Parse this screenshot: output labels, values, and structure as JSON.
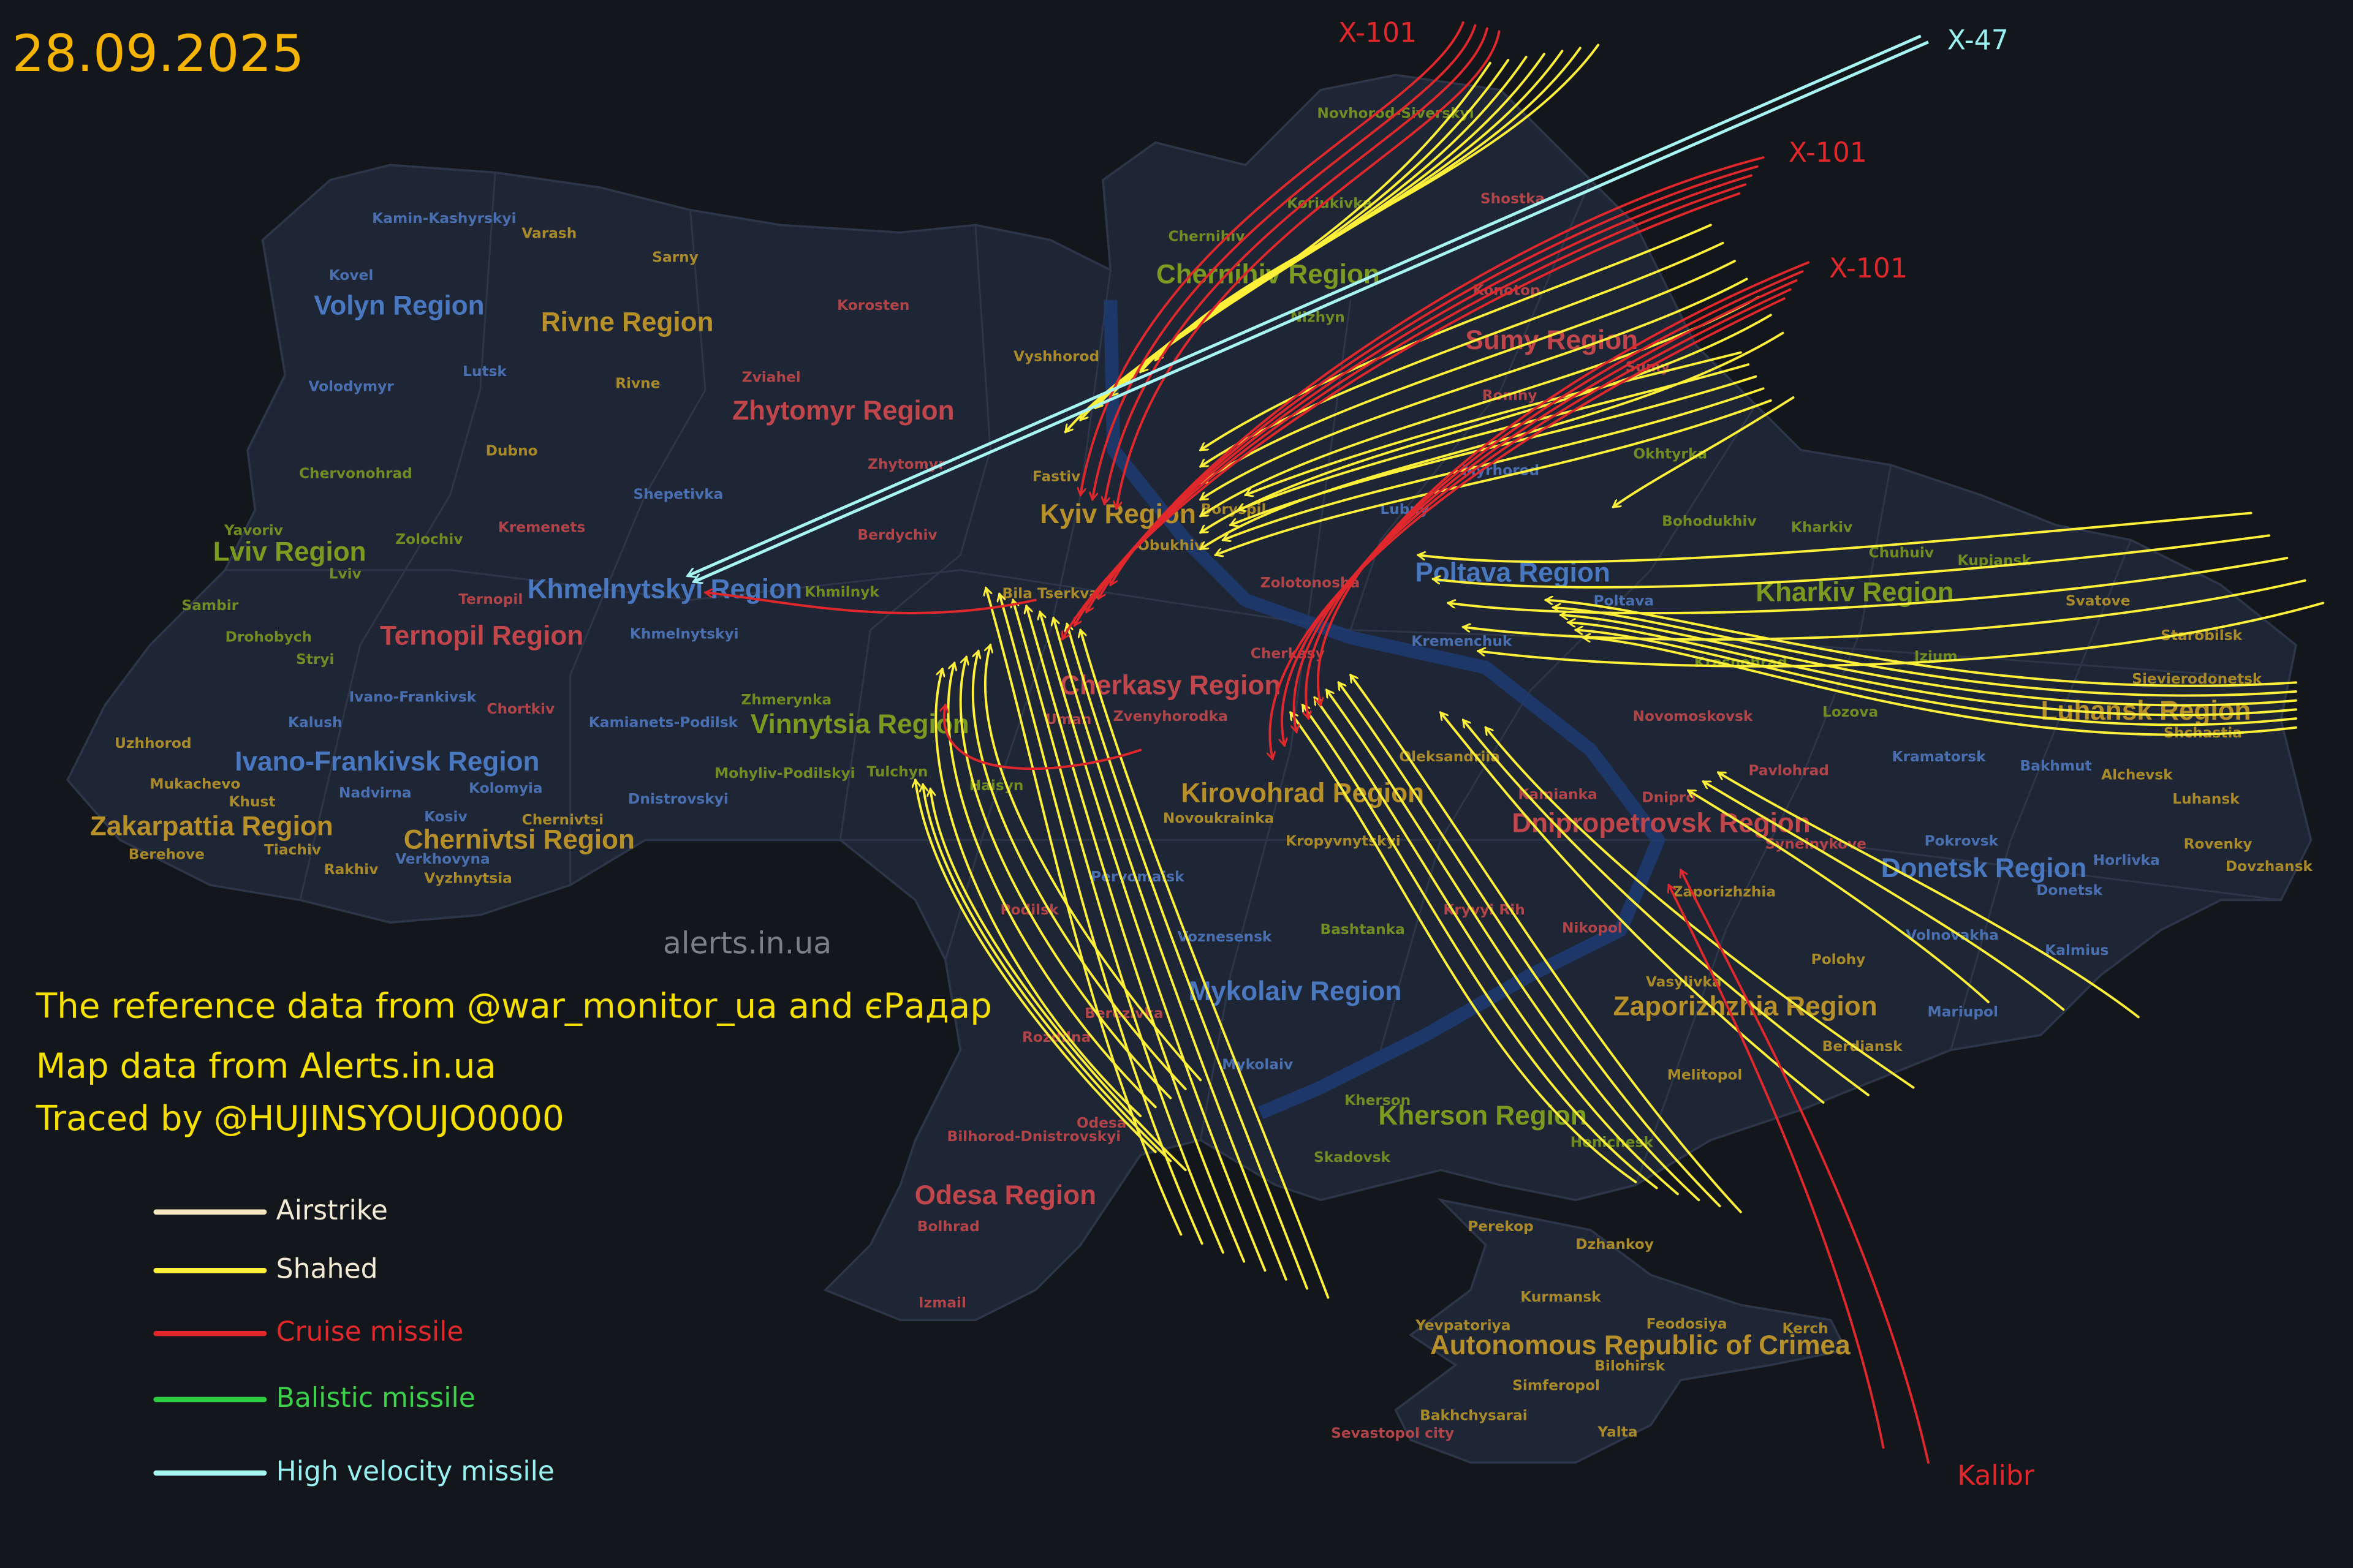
{
  "date": "28.09.2025",
  "watermark": "alerts.in.ua",
  "credits": [
    "The reference data from @war_monitor_ua and єРадар",
    "Map data from Alerts.in.ua",
    "Traced by @HUJINSYOUJO0000"
  ],
  "legend": [
    {
      "label": "Airstrike",
      "color": "#f4e6c2",
      "text_color": "#f3ead6"
    },
    {
      "label": "Shahed",
      "color": "#fff03a",
      "text_color": "#f3ead6"
    },
    {
      "label": "Cruise missile",
      "color": "#e0282c",
      "text_color": "#e0282c"
    },
    {
      "label": "Balistic missile",
      "color": "#2ecc40",
      "text_color": "#3ad24a"
    },
    {
      "label": "High velocity missile",
      "color": "#a8f6f4",
      "text_color": "#98f0f0"
    }
  ],
  "missile_labels": [
    {
      "label": "X-101",
      "color": "#e0282c"
    },
    {
      "label": "X-47",
      "color": "#98f0f0"
    },
    {
      "label": "X-101",
      "color": "#e0282c"
    },
    {
      "label": "X-101",
      "color": "#e0282c"
    },
    {
      "label": "Kalibr",
      "color": "#e0282c"
    }
  ],
  "regions": [
    {
      "name": "Volyn Region",
      "color": "#4a78c0"
    },
    {
      "name": "Rivne Region",
      "color": "#b8902a"
    },
    {
      "name": "Zhytomyr Region",
      "color": "#c0464c"
    },
    {
      "name": "Chernihiv Region",
      "color": "#7a9a20"
    },
    {
      "name": "Sumy Region",
      "color": "#c0464c"
    },
    {
      "name": "Kyiv Region",
      "color": "#b8902a"
    },
    {
      "name": "Lviv Region",
      "color": "#7a9a20"
    },
    {
      "name": "Ternopil Region",
      "color": "#c0464c"
    },
    {
      "name": "Khmelnytskyi Region",
      "color": "#4a78c0"
    },
    {
      "name": "Poltava Region",
      "color": "#4a78c0"
    },
    {
      "name": "Kharkiv Region",
      "color": "#7a9a20"
    },
    {
      "name": "Luhansk Region",
      "color": "#b8902a"
    },
    {
      "name": "Cherkasy Region",
      "color": "#c0464c"
    },
    {
      "name": "Vinnytsia Region",
      "color": "#7a9a20"
    },
    {
      "name": "Ivano-Frankivsk Region",
      "color": "#4a78c0"
    },
    {
      "name": "Zakarpattia Region",
      "color": "#b8902a"
    },
    {
      "name": "Chernivtsi Region",
      "color": "#b8902a"
    },
    {
      "name": "Kirovohrad Region",
      "color": "#b8902a"
    },
    {
      "name": "Dnipropetrovsk Region",
      "color": "#c0464c"
    },
    {
      "name": "Donetsk Region",
      "color": "#4a78c0"
    },
    {
      "name": "Mykolaiv Region",
      "color": "#4a78c0"
    },
    {
      "name": "Zaporizhzhia Region",
      "color": "#b8902a"
    },
    {
      "name": "Kherson Region",
      "color": "#7a9a20"
    },
    {
      "name": "Odesa Region",
      "color": "#c0464c"
    },
    {
      "name": "Autonomous Republic of Crimea",
      "color": "#b8902a"
    }
  ],
  "cities": [
    {
      "name": "Kamin-Kashyrskyi",
      "color": "#4a6fb0"
    },
    {
      "name": "Varash",
      "color": "#a98a2a"
    },
    {
      "name": "Sarny",
      "color": "#a98a2a"
    },
    {
      "name": "Kovel",
      "color": "#4a6fb0"
    },
    {
      "name": "Korosten",
      "color": "#b04448"
    },
    {
      "name": "Lutsk",
      "color": "#4a6fb0"
    },
    {
      "name": "Rivne",
      "color": "#a98a2a"
    },
    {
      "name": "Zviahel",
      "color": "#b04448"
    },
    {
      "name": "Volodymyr",
      "color": "#4a6fb0"
    },
    {
      "name": "Vyshhorod",
      "color": "#a98a2a"
    },
    {
      "name": "Dubno",
      "color": "#a98a2a"
    },
    {
      "name": "Chervonohrad",
      "color": "#6f8d22"
    },
    {
      "name": "Shepetivka",
      "color": "#4a6fb0"
    },
    {
      "name": "Zhytomyr",
      "color": "#b04448"
    },
    {
      "name": "Fastiv",
      "color": "#a98a2a"
    },
    {
      "name": "Kremenets",
      "color": "#b04448"
    },
    {
      "name": "Yavoriv",
      "color": "#6f8d22"
    },
    {
      "name": "Zolochiv",
      "color": "#6f8d22"
    },
    {
      "name": "Lviv",
      "color": "#6f8d22"
    },
    {
      "name": "Berdychiv",
      "color": "#b04448"
    },
    {
      "name": "Obukhiv",
      "color": "#a98a2a"
    },
    {
      "name": "Boryspil",
      "color": "#a98a2a"
    },
    {
      "name": "Sambir",
      "color": "#6f8d22"
    },
    {
      "name": "Ternopil",
      "color": "#b04448"
    },
    {
      "name": "Khmilnyk",
      "color": "#6f8d22"
    },
    {
      "name": "Bila Tserkva",
      "color": "#a98a2a"
    },
    {
      "name": "Drohobych",
      "color": "#6f8d22"
    },
    {
      "name": "Khmelnytskyi",
      "color": "#4a6fb0"
    },
    {
      "name": "Stryi",
      "color": "#6f8d22"
    },
    {
      "name": "Ivano-Frankivsk",
      "color": "#4a6fb0"
    },
    {
      "name": "Chortkiv",
      "color": "#b04448"
    },
    {
      "name": "Kalush",
      "color": "#4a6fb0"
    },
    {
      "name": "Kamianets-Podilsk",
      "color": "#4a6fb0"
    },
    {
      "name": "Zhmerynka",
      "color": "#6f8d22"
    },
    {
      "name": "Uman",
      "color": "#b04448"
    },
    {
      "name": "Zvenyhorodka",
      "color": "#b04448"
    },
    {
      "name": "Cherkasy",
      "color": "#b04448"
    },
    {
      "name": "Zolotonosha",
      "color": "#b04448"
    },
    {
      "name": "Kremenchuk",
      "color": "#4a6fb0"
    },
    {
      "name": "Uzhhorod",
      "color": "#a98a2a"
    },
    {
      "name": "Mukachevo",
      "color": "#a98a2a"
    },
    {
      "name": "Khust",
      "color": "#a98a2a"
    },
    {
      "name": "Nadvirna",
      "color": "#4a6fb0"
    },
    {
      "name": "Kolomyia",
      "color": "#4a6fb0"
    },
    {
      "name": "Dnistrovskyi",
      "color": "#4a6fb0"
    },
    {
      "name": "Mohyliv-Podilskyi",
      "color": "#6f8d22"
    },
    {
      "name": "Tulchyn",
      "color": "#6f8d22"
    },
    {
      "name": "Haisyn",
      "color": "#6f8d22"
    },
    {
      "name": "Berehove",
      "color": "#a98a2a"
    },
    {
      "name": "Tiachiv",
      "color": "#a98a2a"
    },
    {
      "name": "Kosiv",
      "color": "#4a6fb0"
    },
    {
      "name": "Verkhovyna",
      "color": "#4a6fb0"
    },
    {
      "name": "Chernivtsi",
      "color": "#a98a2a"
    },
    {
      "name": "Vyzhnytsia",
      "color": "#a98a2a"
    },
    {
      "name": "Rakhiv",
      "color": "#a98a2a"
    },
    {
      "name": "Novoukrainka",
      "color": "#a98a2a"
    },
    {
      "name": "Kropyvnytskyi",
      "color": "#a98a2a"
    },
    {
      "name": "Oleksandriia",
      "color": "#a98a2a"
    },
    {
      "name": "Kamianka",
      "color": "#b04448"
    },
    {
      "name": "Dnipro",
      "color": "#b04448"
    },
    {
      "name": "Pavlohrad",
      "color": "#b04448"
    },
    {
      "name": "Novomoskovsk",
      "color": "#b04448"
    },
    {
      "name": "Krasnohrad",
      "color": "#6f8d22"
    },
    {
      "name": "Lozova",
      "color": "#6f8d22"
    },
    {
      "name": "Kramatorsk",
      "color": "#4a6fb0"
    },
    {
      "name": "Bakhmut",
      "color": "#4a6fb0"
    },
    {
      "name": "Alchevsk",
      "color": "#a98a2a"
    },
    {
      "name": "Luhansk",
      "color": "#a98a2a"
    },
    {
      "name": "Sievierodonetsk",
      "color": "#a98a2a"
    },
    {
      "name": "Shchastia",
      "color": "#a98a2a"
    },
    {
      "name": "Starobilsk",
      "color": "#a98a2a"
    },
    {
      "name": "Svatove",
      "color": "#a98a2a"
    },
    {
      "name": "Kupiansk",
      "color": "#6f8d22"
    },
    {
      "name": "Chuhuiv",
      "color": "#6f8d22"
    },
    {
      "name": "Kharkiv",
      "color": "#6f8d22"
    },
    {
      "name": "Bohodukhiv",
      "color": "#6f8d22"
    },
    {
      "name": "Okhtyrka",
      "color": "#6f8d22"
    },
    {
      "name": "Poltava",
      "color": "#4a6fb0"
    },
    {
      "name": "Myrhorod",
      "color": "#4a6fb0"
    },
    {
      "name": "Izium",
      "color": "#6f8d22"
    },
    {
      "name": "Lubny",
      "color": "#4a6fb0"
    },
    {
      "name": "Romny",
      "color": "#b04448"
    },
    {
      "name": "Sumy",
      "color": "#b04448"
    },
    {
      "name": "Shostka",
      "color": "#b04448"
    },
    {
      "name": "Konotop",
      "color": "#b04448"
    },
    {
      "name": "Nizhyn",
      "color": "#6f8d22"
    },
    {
      "name": "Chernihiv",
      "color": "#6f8d22"
    },
    {
      "name": "Koriukivka",
      "color": "#6f8d22"
    },
    {
      "name": "Novhorod-Siverskyi",
      "color": "#6f8d22"
    },
    {
      "name": "Kryvyi Rih",
      "color": "#b04448"
    },
    {
      "name": "Nikopol",
      "color": "#b04448"
    },
    {
      "name": "Zaporizhzhia",
      "color": "#a98a2a"
    },
    {
      "name": "Synelnykove",
      "color": "#b04448"
    },
    {
      "name": "Pokrovsk",
      "color": "#4a6fb0"
    },
    {
      "name": "Horlivka",
      "color": "#4a6fb0"
    },
    {
      "name": "Rovenky",
      "color": "#a98a2a"
    },
    {
      "name": "Dovzhansk",
      "color": "#a98a2a"
    },
    {
      "name": "Donetsk",
      "color": "#4a6fb0"
    },
    {
      "name": "Kalmius",
      "color": "#4a6fb0"
    },
    {
      "name": "Volnovakha",
      "color": "#4a6fb0"
    },
    {
      "name": "Mariupol",
      "color": "#4a6fb0"
    },
    {
      "name": "Polohy",
      "color": "#a98a2a"
    },
    {
      "name": "Vasylivka",
      "color": "#a98a2a"
    },
    {
      "name": "Berdiansk",
      "color": "#a98a2a"
    },
    {
      "name": "Melitopol",
      "color": "#a98a2a"
    },
    {
      "name": "Bashtanka",
      "color": "#6f8d22"
    },
    {
      "name": "Voznesensk",
      "color": "#4a6fb0"
    },
    {
      "name": "Pervomaisk",
      "color": "#4a6fb0"
    },
    {
      "name": "Podilsk",
      "color": "#b04448"
    },
    {
      "name": "Berezivka",
      "color": "#b04448"
    },
    {
      "name": "Rozdilna",
      "color": "#b04448"
    },
    {
      "name": "Mykolaiv",
      "color": "#4a6fb0"
    },
    {
      "name": "Kherson",
      "color": "#6f8d22"
    },
    {
      "name": "Henichesk",
      "color": "#6f8d22"
    },
    {
      "name": "Skadovsk",
      "color": "#6f8d22"
    },
    {
      "name": "Bilhorod-Dnistrovskyi",
      "color": "#b04448"
    },
    {
      "name": "Odesa",
      "color": "#b04448"
    },
    {
      "name": "Bolhrad",
      "color": "#b04448"
    },
    {
      "name": "Izmail",
      "color": "#b04448"
    },
    {
      "name": "Perekop",
      "color": "#a98a2a"
    },
    {
      "name": "Dzhankoy",
      "color": "#a98a2a"
    },
    {
      "name": "Kurmansk",
      "color": "#a98a2a"
    },
    {
      "name": "Feodosiya",
      "color": "#a98a2a"
    },
    {
      "name": "Kerch",
      "color": "#a98a2a"
    },
    {
      "name": "Yevpatoriya",
      "color": "#a98a2a"
    },
    {
      "name": "Bilohirsk",
      "color": "#a98a2a"
    },
    {
      "name": "Simferopol",
      "color": "#a98a2a"
    },
    {
      "name": "Bakhchysarai",
      "color": "#a98a2a"
    },
    {
      "name": "Yalta",
      "color": "#a98a2a"
    },
    {
      "name": "Sevastopol city",
      "color": "#b04448"
    }
  ]
}
